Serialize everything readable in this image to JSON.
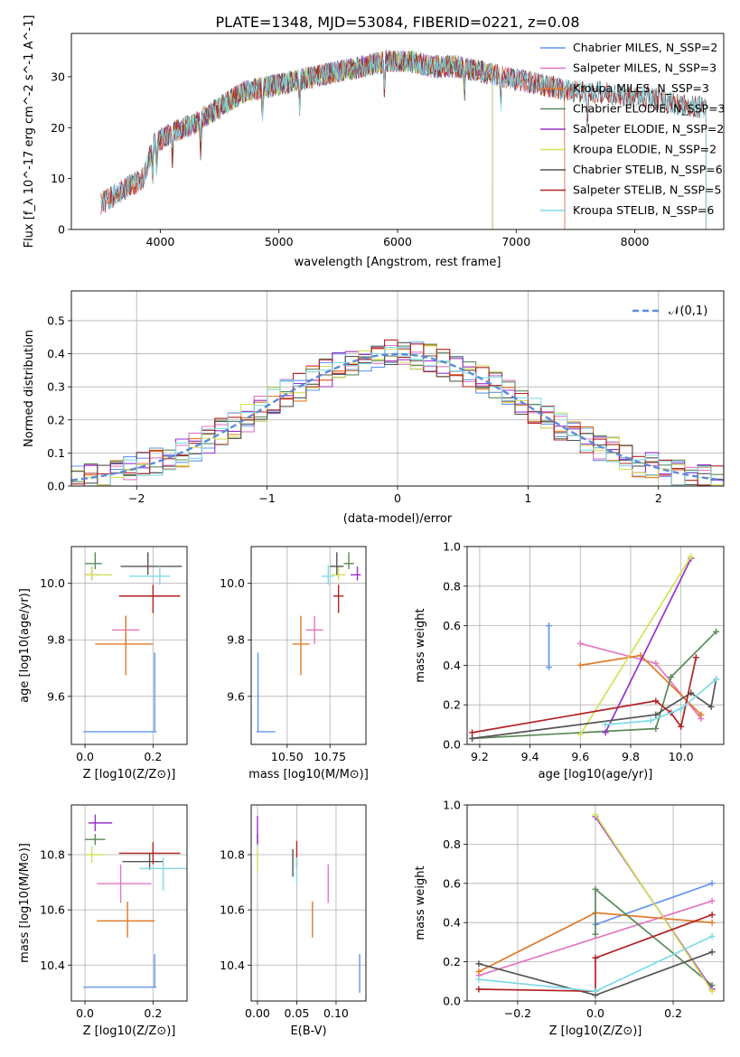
{
  "figure": {
    "title": "PLATE=1348, MJD=53084, FIBERID=0221, z=0.08"
  },
  "chart_data": [
    {
      "id": "spectrum",
      "type": "line",
      "xlabel": "wavelength [Angstrom, rest frame]",
      "ylabel": "Flux [f_λ 10^-17 erg cm^-2 s^-1 A^-1]",
      "xlim": [
        3250,
        8750
      ],
      "ylim": [
        0,
        38.5
      ],
      "xticks": [
        4000,
        5000,
        6000,
        7000,
        8000
      ],
      "yticks": [
        0,
        10,
        20,
        30
      ],
      "grid": false,
      "legend_position": "upper right",
      "series": [
        {
          "name": "Chabrier MILES, N_SSP=2",
          "color": "#6495ed",
          "x_range": [
            3500,
            7410
          ]
        },
        {
          "name": "Salpeter MILES, N_SSP=3",
          "color": "#e377c2",
          "x_range": [
            3500,
            7410
          ]
        },
        {
          "name": "Kroupa MILES, N_SSP=3",
          "color": "#e07b28",
          "x_range": [
            3500,
            7410
          ]
        },
        {
          "name": "Chabrier ELODIE, N_SSP=3",
          "color": "#5b8a5b",
          "x_range": [
            3900,
            6800
          ]
        },
        {
          "name": "Salpeter ELODIE, N_SSP=2",
          "color": "#9932cc",
          "x_range": [
            3900,
            6800
          ]
        },
        {
          "name": "Kroupa ELODIE, N_SSP=2",
          "color": "#d4e157",
          "x_range": [
            3900,
            6800
          ]
        },
        {
          "name": "Chabrier STELIB, N_SSP=6",
          "color": "#555555",
          "x_range": [
            3500,
            8600
          ]
        },
        {
          "name": "Salpeter STELIB, N_SSP=5",
          "color": "#b22222",
          "x_range": [
            3500,
            8600
          ]
        },
        {
          "name": "Kroupa STELIB, N_SSP=6",
          "color": "#80dbe6",
          "x_range": [
            3500,
            8600
          ]
        }
      ],
      "approx_continuum": {
        "x": [
          3500,
          3700,
          3850,
          3950,
          4100,
          4300,
          4500,
          4700,
          4900,
          5100,
          5300,
          5500,
          5700,
          5900,
          6100,
          6300,
          6500,
          6700,
          6900,
          7100,
          7300,
          7500,
          7700,
          7900,
          8100,
          8300,
          8500,
          8600
        ],
        "y": [
          5,
          8,
          10,
          17,
          19,
          21,
          24,
          27,
          28,
          29,
          30,
          31,
          32,
          33,
          33,
          32,
          32,
          31,
          30,
          29,
          28,
          27,
          27,
          26,
          26,
          25,
          24,
          24
        ]
      }
    },
    {
      "id": "residuals",
      "type": "step",
      "xlabel": "(data-model)/error",
      "ylabel": "Normed distribution",
      "xlim": [
        -2.5,
        2.5
      ],
      "ylim": [
        0,
        0.59
      ],
      "xticks": [
        -2,
        -1,
        0,
        1,
        2
      ],
      "yticks": [
        0.0,
        0.1,
        0.2,
        0.3,
        0.4,
        0.5
      ],
      "grid": true,
      "legend_position": "upper right",
      "reference": {
        "name": "𝒩(0,1)",
        "color": "#5b8bd9"
      },
      "bin_width": 0.1
    },
    {
      "id": "age_vs_Z",
      "type": "scatter",
      "xlabel": "Z [log10(Z/Z⊙)]",
      "ylabel": "age  [log10(age/yr)]",
      "xlim": [
        -0.04,
        0.3
      ],
      "ylim": [
        9.43,
        10.13
      ],
      "xticks": [
        0.0,
        0.2
      ],
      "yticks": [
        9.6,
        9.8,
        10.0
      ],
      "grid": true,
      "points": [
        {
          "color": "#6495ed",
          "x": 0.205,
          "y": 9.475,
          "xerr": [
            0.21,
            0.005
          ],
          "yerr": [
            0.0,
            0.28
          ]
        },
        {
          "color": "#e377c2",
          "x": 0.12,
          "y": 9.835,
          "xerr": [
            0.04,
            0.04
          ],
          "yerr": [
            0.05,
            0.05
          ]
        },
        {
          "color": "#e07b28",
          "x": 0.12,
          "y": 9.785,
          "xerr": [
            0.09,
            0.08
          ],
          "yerr": [
            0.11,
            0.1
          ]
        },
        {
          "color": "#5b8a5b",
          "x": 0.03,
          "y": 10.07,
          "xerr": [
            0.03,
            0.02
          ],
          "yerr": [
            0.02,
            0.04
          ]
        },
        {
          "color": "#9932cc",
          "x": 0.02,
          "y": 10.03,
          "xerr": [
            0.02,
            0.02
          ],
          "yerr": [
            0.02,
            0.03
          ]
        },
        {
          "color": "#d4e157",
          "x": 0.02,
          "y": 10.03,
          "xerr": [
            0.02,
            0.06
          ],
          "yerr": [
            0.02,
            0.03
          ]
        },
        {
          "color": "#555555",
          "x": 0.185,
          "y": 10.06,
          "xerr": [
            0.08,
            0.1
          ],
          "yerr": [
            0.03,
            0.05
          ]
        },
        {
          "color": "#b22222",
          "x": 0.2,
          "y": 9.955,
          "xerr": [
            0.1,
            0.08
          ],
          "yerr": [
            0.06,
            0.04
          ]
        },
        {
          "color": "#80dbe6",
          "x": 0.22,
          "y": 10.025,
          "xerr": [
            0.09,
            0.03
          ],
          "yerr": [
            0.03,
            0.04
          ]
        }
      ]
    },
    {
      "id": "age_vs_mass",
      "type": "scatter",
      "xlabel": "mass [log10(M/M⊙)]",
      "ylabel": "",
      "xlim": [
        10.29,
        10.96
      ],
      "ylim": [
        9.43,
        10.13
      ],
      "xticks": [
        10.5,
        10.75
      ],
      "yticks": [
        9.6,
        9.8,
        10.0
      ],
      "grid": true,
      "points": [
        {
          "color": "#6495ed",
          "x": 10.33,
          "y": 9.475,
          "xerr": [
            0.01,
            0.1
          ],
          "yerr": [
            0.0,
            0.28
          ]
        },
        {
          "color": "#e377c2",
          "x": 10.66,
          "y": 9.835,
          "xerr": [
            0.05,
            0.05
          ],
          "yerr": [
            0.05,
            0.05
          ]
        },
        {
          "color": "#e07b28",
          "x": 10.58,
          "y": 9.785,
          "xerr": [
            0.05,
            0.05
          ],
          "yerr": [
            0.11,
            0.1
          ]
        },
        {
          "color": "#5b8a5b",
          "x": 10.86,
          "y": 10.07,
          "xerr": [
            0.03,
            0.03
          ],
          "yerr": [
            0.02,
            0.04
          ]
        },
        {
          "color": "#9932cc",
          "x": 10.91,
          "y": 10.03,
          "xerr": [
            0.04,
            0.02
          ],
          "yerr": [
            0.02,
            0.03
          ]
        },
        {
          "color": "#d4e157",
          "x": 10.8,
          "y": 10.03,
          "xerr": [
            0.04,
            0.04
          ],
          "yerr": [
            0.02,
            0.03
          ]
        },
        {
          "color": "#555555",
          "x": 10.79,
          "y": 10.06,
          "xerr": [
            0.04,
            0.04
          ],
          "yerr": [
            0.03,
            0.05
          ]
        },
        {
          "color": "#b22222",
          "x": 10.8,
          "y": 9.955,
          "xerr": [
            0.03,
            0.03
          ],
          "yerr": [
            0.06,
            0.04
          ]
        },
        {
          "color": "#80dbe6",
          "x": 10.74,
          "y": 10.025,
          "xerr": [
            0.04,
            0.03
          ],
          "yerr": [
            0.03,
            0.04
          ]
        }
      ]
    },
    {
      "id": "mass_weight_vs_age",
      "type": "line",
      "xlabel": "age  [log10(age/yr)]",
      "ylabel": "mass weight",
      "xlim": [
        9.15,
        10.17
      ],
      "ylim": [
        0.0,
        1.0
      ],
      "xticks": [
        9.2,
        9.4,
        9.6,
        9.8,
        10.0
      ],
      "yticks": [
        0.0,
        0.2,
        0.4,
        0.6,
        0.8,
        1.0
      ],
      "grid": true,
      "series": [
        {
          "color": "#6495ed",
          "x": [
            9.475,
            9.475
          ],
          "y": [
            0.39,
            0.6
          ]
        },
        {
          "color": "#e377c2",
          "x": [
            9.6,
            9.9,
            10.08
          ],
          "y": [
            0.51,
            0.41,
            0.13
          ]
        },
        {
          "color": "#e07b28",
          "x": [
            9.6,
            9.84,
            10.08
          ],
          "y": [
            0.4,
            0.45,
            0.15
          ]
        },
        {
          "color": "#5b8a5b",
          "x": [
            9.17,
            9.9,
            9.96,
            10.14
          ],
          "y": [
            0.03,
            0.08,
            0.34,
            0.57
          ]
        },
        {
          "color": "#9932cc",
          "x": [
            9.7,
            10.04
          ],
          "y": [
            0.06,
            0.94
          ]
        },
        {
          "color": "#d4e157",
          "x": [
            9.6,
            10.04
          ],
          "y": [
            0.05,
            0.95
          ]
        },
        {
          "color": "#555555",
          "x": [
            9.17,
            9.9,
            10.04,
            10.12,
            10.14
          ],
          "y": [
            0.03,
            0.15,
            0.26,
            0.19,
            0.33
          ]
        },
        {
          "color": "#b22222",
          "x": [
            9.17,
            9.9,
            9.96,
            10.0,
            10.06
          ],
          "y": [
            0.06,
            0.22,
            0.16,
            0.09,
            0.44
          ]
        },
        {
          "color": "#80dbe6",
          "x": [
            9.7,
            9.88,
            10.0,
            10.14
          ],
          "y": [
            0.1,
            0.12,
            0.18,
            0.33
          ]
        }
      ]
    },
    {
      "id": "mass_vs_Z",
      "type": "scatter",
      "xlabel": "Z [log10(Z/Z⊙)]",
      "ylabel": "mass [log10(M/M⊙)]",
      "xlim": [
        -0.04,
        0.3
      ],
      "ylim": [
        10.27,
        10.98
      ],
      "xticks": [
        0.0,
        0.2
      ],
      "yticks": [
        10.4,
        10.6,
        10.8
      ],
      "grid": true,
      "points": [
        {
          "color": "#6495ed",
          "x": 0.205,
          "y": 10.32,
          "xerr": [
            0.21,
            0.005
          ],
          "yerr": [
            0.0,
            0.12
          ]
        },
        {
          "color": "#e377c2",
          "x": 0.105,
          "y": 10.695,
          "xerr": [
            0.07,
            0.09
          ],
          "yerr": [
            0.07,
            0.07
          ]
        },
        {
          "color": "#e07b28",
          "x": 0.125,
          "y": 10.56,
          "xerr": [
            0.09,
            0.08
          ],
          "yerr": [
            0.06,
            0.07
          ]
        },
        {
          "color": "#5b8a5b",
          "x": 0.03,
          "y": 10.855,
          "xerr": [
            0.03,
            0.03
          ],
          "yerr": [
            0.02,
            0.02
          ]
        },
        {
          "color": "#9932cc",
          "x": 0.03,
          "y": 10.915,
          "xerr": [
            0.02,
            0.05
          ],
          "yerr": [
            0.03,
            0.03
          ]
        },
        {
          "color": "#d4e157",
          "x": 0.02,
          "y": 10.8,
          "xerr": [
            0.02,
            0.04
          ],
          "yerr": [
            0.03,
            0.03
          ]
        },
        {
          "color": "#555555",
          "x": 0.19,
          "y": 10.775,
          "xerr": [
            0.08,
            0.04
          ],
          "yerr": [
            0.03,
            0.03
          ]
        },
        {
          "color": "#b22222",
          "x": 0.2,
          "y": 10.805,
          "xerr": [
            0.1,
            0.08
          ],
          "yerr": [
            0.04,
            0.04
          ]
        },
        {
          "color": "#80dbe6",
          "x": 0.23,
          "y": 10.75,
          "xerr": [
            0.07,
            0.07
          ],
          "yerr": [
            0.08,
            0.04
          ]
        }
      ]
    },
    {
      "id": "mass_vs_ebv",
      "type": "scatter",
      "xlabel": "E(B-V)",
      "ylabel": "",
      "xlim": [
        -0.008,
        0.138
      ],
      "ylim": [
        10.27,
        10.98
      ],
      "xticks": [
        0.0,
        0.05,
        0.1
      ],
      "yticks": [
        10.4,
        10.6,
        10.8
      ],
      "grid": true,
      "points": [
        {
          "color": "#6495ed",
          "x": 0.13,
          "y": 10.37,
          "yerr": [
            0.07,
            0.07
          ]
        },
        {
          "color": "#e377c2",
          "x": 0.09,
          "y": 10.695,
          "yerr": [
            0.07,
            0.07
          ]
        },
        {
          "color": "#e07b28",
          "x": 0.07,
          "y": 10.56,
          "yerr": [
            0.06,
            0.07
          ]
        },
        {
          "color": "#5b8a5b",
          "x": 0.0,
          "y": 10.855,
          "yerr": [
            0.02,
            0.02
          ]
        },
        {
          "color": "#9932cc",
          "x": 0.0,
          "y": 10.89,
          "yerr": [
            0.05,
            0.05
          ]
        },
        {
          "color": "#d4e157",
          "x": 0.0,
          "y": 10.78,
          "yerr": [
            0.04,
            0.04
          ]
        },
        {
          "color": "#555555",
          "x": 0.045,
          "y": 10.77,
          "yerr": [
            0.05,
            0.05
          ]
        },
        {
          "color": "#b22222",
          "x": 0.05,
          "y": 10.8,
          "yerr": [
            0.05,
            0.05
          ]
        },
        {
          "color": "#80dbe6",
          "x": 0.05,
          "y": 10.74,
          "yerr": [
            0.05,
            0.05
          ]
        }
      ]
    },
    {
      "id": "mass_weight_vs_Z",
      "type": "line",
      "xlabel": "Z [log10(Z/Z⊙)]",
      "ylabel": "mass weight",
      "xlim": [
        -0.33,
        0.33
      ],
      "ylim": [
        0.0,
        1.0
      ],
      "xticks": [
        -0.2,
        0.0,
        0.2
      ],
      "yticks": [
        0.0,
        0.2,
        0.4,
        0.6,
        0.8,
        1.0
      ],
      "grid": true,
      "series": [
        {
          "color": "#6495ed",
          "x": [
            0.0,
            0.3
          ],
          "y": [
            0.39,
            0.6
          ]
        },
        {
          "color": "#e377c2",
          "x": [
            -0.3,
            0.3
          ],
          "y": [
            0.13,
            0.51
          ]
        },
        {
          "color": "#e07b28",
          "x": [
            -0.3,
            0.0,
            0.3
          ],
          "y": [
            0.15,
            0.45,
            0.4
          ]
        },
        {
          "color": "#5b8a5b",
          "x": [
            0.0,
            0.0,
            0.3
          ],
          "y": [
            0.34,
            0.57,
            0.08
          ]
        },
        {
          "color": "#9932cc",
          "x": [
            0.0,
            0.3
          ],
          "y": [
            0.94,
            0.06
          ]
        },
        {
          "color": "#d4e157",
          "x": [
            0.0,
            0.3
          ],
          "y": [
            0.95,
            0.05
          ]
        },
        {
          "color": "#555555",
          "x": [
            -0.3,
            0.0,
            0.3
          ],
          "y": [
            0.19,
            0.03,
            0.25
          ]
        },
        {
          "color": "#b22222",
          "x": [
            -0.3,
            0.0,
            0.0,
            0.3
          ],
          "y": [
            0.06,
            0.05,
            0.22,
            0.44
          ]
        },
        {
          "color": "#80dbe6",
          "x": [
            -0.3,
            0.0,
            0.3
          ],
          "y": [
            0.11,
            0.05,
            0.33
          ]
        }
      ]
    }
  ]
}
